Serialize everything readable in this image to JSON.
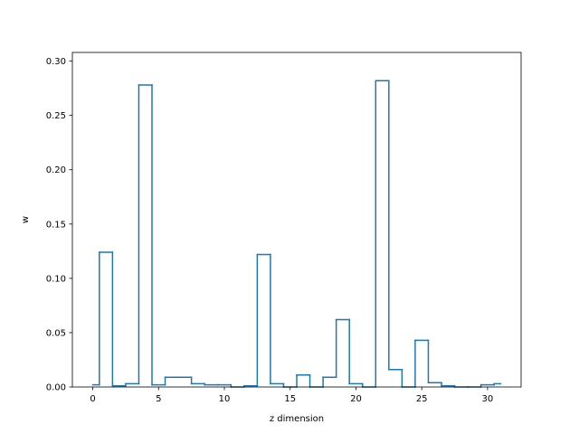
{
  "chart_data": {
    "type": "step",
    "xlabel": "z dimension",
    "ylabel": "w",
    "xlim": [
      -1.55,
      32.55
    ],
    "ylim": [
      0.0,
      0.308
    ],
    "xticks": [
      0,
      5,
      10,
      15,
      20,
      25,
      30
    ],
    "xtick_labels": [
      "0",
      "5",
      "10",
      "15",
      "20",
      "25",
      "30"
    ],
    "yticks": [
      0.0,
      0.05,
      0.1,
      0.15,
      0.2,
      0.25,
      0.3
    ],
    "ytick_labels": [
      "0.00",
      "0.05",
      "0.10",
      "0.15",
      "0.20",
      "0.25",
      "0.30"
    ],
    "grid": false,
    "step_where": "mid",
    "series": [
      {
        "color": "#1f77b4",
        "x": [
          0,
          1,
          2,
          3,
          4,
          5,
          6,
          7,
          8,
          9,
          10,
          11,
          12,
          13,
          14,
          15,
          16,
          17,
          18,
          19,
          20,
          21,
          22,
          23,
          24,
          25,
          26,
          27,
          28,
          29,
          30,
          31
        ],
        "values": [
          0.002,
          0.124,
          0.001,
          0.003,
          0.278,
          0.002,
          0.009,
          0.009,
          0.003,
          0.002,
          0.002,
          0.0,
          0.001,
          0.122,
          0.003,
          0.0,
          0.011,
          0.0,
          0.009,
          0.062,
          0.003,
          0.0,
          0.282,
          0.016,
          0.0,
          0.043,
          0.004,
          0.001,
          0.0,
          0.0,
          0.002,
          0.003
        ]
      }
    ]
  }
}
